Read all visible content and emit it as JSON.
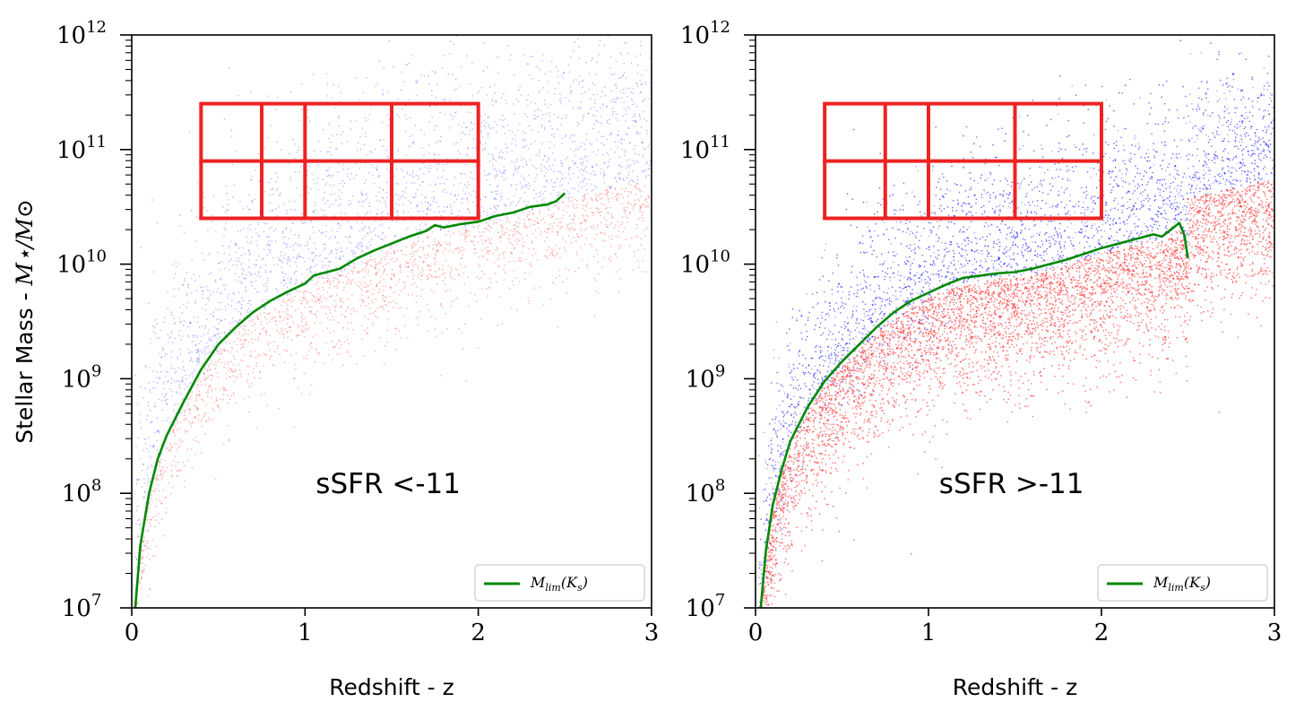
{
  "figure_title": "",
  "chart_data": [
    {
      "type": "scatter",
      "panel_label": "sSFR <-11",
      "xlabel": "Redshift - z",
      "ylabel_text": "Stellar Mass - ",
      "ylabel_math": "M⋆/M⊙",
      "xlim": [
        0,
        3
      ],
      "ylim_log10": [
        7,
        12
      ],
      "yscale": "log",
      "xticks": [
        0,
        1,
        2,
        3
      ],
      "xtick_labels": [
        "0",
        "1",
        "2",
        "3"
      ],
      "yticks_log10": [
        7,
        8,
        9,
        10,
        11,
        12
      ],
      "ytick_labels": [
        {
          "base": "10",
          "exp": "7"
        },
        {
          "base": "10",
          "exp": "8"
        },
        {
          "base": "10",
          "exp": "9"
        },
        {
          "base": "10",
          "exp": "10"
        },
        {
          "base": "10",
          "exp": "11"
        },
        {
          "base": "10",
          "exp": "12"
        }
      ],
      "legend": {
        "label": "M_lim(K_s)",
        "label_main": "M",
        "label_sub": "lim",
        "label_rest": "(K",
        "label_sub2": "s",
        "label_close": ")",
        "placement": "lower-right",
        "color": "#008800"
      },
      "series": [
        {
          "name": "M_lim(K_s)",
          "kind": "line",
          "color": "#008800",
          "x": [
            0.02,
            0.05,
            0.1,
            0.15,
            0.2,
            0.3,
            0.4,
            0.5,
            0.6,
            0.7,
            0.8,
            0.9,
            1.0,
            1.05,
            1.1,
            1.2,
            1.3,
            1.4,
            1.5,
            1.6,
            1.7,
            1.75,
            1.8,
            1.9,
            2.0,
            2.1,
            2.2,
            2.3,
            2.4,
            2.45,
            2.5
          ],
          "log10_y": [
            7.0,
            7.55,
            8.0,
            8.3,
            8.5,
            8.8,
            9.08,
            9.3,
            9.45,
            9.58,
            9.68,
            9.76,
            9.83,
            9.9,
            9.92,
            9.96,
            10.05,
            10.12,
            10.18,
            10.24,
            10.29,
            10.34,
            10.32,
            10.35,
            10.37,
            10.42,
            10.45,
            10.5,
            10.52,
            10.55,
            10.62
          ]
        },
        {
          "name": "sample points (blue)",
          "kind": "scatter",
          "color": "#0000ff"
        },
        {
          "name": "sample points (red)",
          "kind": "scatter",
          "color": "#ff2020"
        }
      ],
      "bins": {
        "color": "#ee2222",
        "z_edges": [
          0.4,
          0.75,
          1.0,
          1.5,
          2.0
        ],
        "log10_mass_edges": [
          10.4,
          10.9,
          11.4
        ]
      }
    },
    {
      "type": "scatter",
      "panel_label": "sSFR >-11",
      "xlabel": "Redshift - z",
      "xlim": [
        0,
        3
      ],
      "ylim_log10": [
        7,
        12
      ],
      "yscale": "log",
      "xticks": [
        0,
        1,
        2,
        3
      ],
      "xtick_labels": [
        "0",
        "1",
        "2",
        "3"
      ],
      "yticks_log10": [
        7,
        8,
        9,
        10,
        11,
        12
      ],
      "ytick_labels": [
        {
          "base": "10",
          "exp": "7"
        },
        {
          "base": "10",
          "exp": "8"
        },
        {
          "base": "10",
          "exp": "9"
        },
        {
          "base": "10",
          "exp": "10"
        },
        {
          "base": "10",
          "exp": "11"
        },
        {
          "base": "10",
          "exp": "12"
        }
      ],
      "legend": {
        "label": "M_lim(K_s)",
        "label_main": "M",
        "label_sub": "lim",
        "label_rest": "(K",
        "label_sub2": "s",
        "label_close": ")",
        "placement": "lower-right",
        "color": "#008800"
      },
      "series": [
        {
          "name": "M_lim(K_s)",
          "kind": "line",
          "color": "#008800",
          "x": [
            0.03,
            0.06,
            0.1,
            0.15,
            0.2,
            0.3,
            0.4,
            0.5,
            0.6,
            0.7,
            0.8,
            0.9,
            1.0,
            1.1,
            1.2,
            1.3,
            1.4,
            1.5,
            1.6,
            1.7,
            1.8,
            1.9,
            2.0,
            2.1,
            2.2,
            2.3,
            2.35,
            2.4,
            2.45,
            2.48,
            2.5
          ],
          "log10_y": [
            7.0,
            7.5,
            7.9,
            8.2,
            8.45,
            8.75,
            8.98,
            9.15,
            9.3,
            9.45,
            9.58,
            9.68,
            9.75,
            9.82,
            9.88,
            9.9,
            9.92,
            9.93,
            9.96,
            10.0,
            10.04,
            10.09,
            10.14,
            10.18,
            10.22,
            10.26,
            10.24,
            10.3,
            10.36,
            10.25,
            10.05
          ]
        },
        {
          "name": "sample points (blue)",
          "kind": "scatter",
          "color": "#0000ff"
        },
        {
          "name": "sample points (red)",
          "kind": "scatter",
          "color": "#ff2020"
        }
      ],
      "bins": {
        "color": "#ee2222",
        "z_edges": [
          0.4,
          0.75,
          1.0,
          1.5,
          2.0
        ],
        "log10_mass_edges": [
          10.4,
          10.9,
          11.4
        ]
      }
    }
  ]
}
